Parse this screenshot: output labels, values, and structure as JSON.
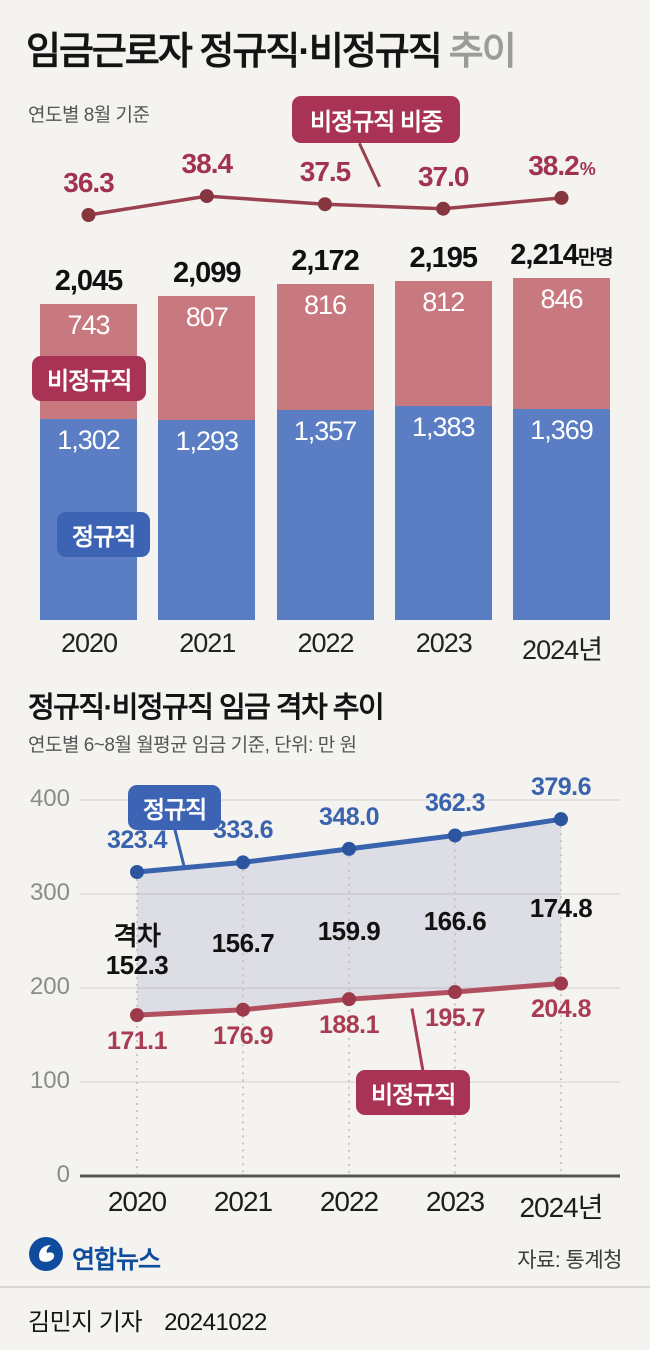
{
  "header": {
    "title_main": "임금근로자 정규직·비정규직",
    "title_sub": "추이",
    "note": "연도별 8월 기준",
    "ratio_badge": "비정규직 비중"
  },
  "colors": {
    "accent_red": "#a93355",
    "badge_blue": "#3d64b4",
    "bar_pink": "#c8797f",
    "bar_blue": "#5b7dc3",
    "ratio_line": "#9a4150"
  },
  "chart_data": [
    {
      "type": "line",
      "title": "비정규직 비중",
      "categories": [
        "2020",
        "2021",
        "2022",
        "2023",
        "2024"
      ],
      "values": [
        36.3,
        38.4,
        37.5,
        37.0,
        38.2
      ],
      "unit": "%",
      "color": "#9a4150",
      "dot_color": "#87353f"
    },
    {
      "type": "bar",
      "title": "임금근로자 정규직·비정규직 추이",
      "subtitle": "연도별 8월 기준",
      "categories": [
        "2020",
        "2021",
        "2022",
        "2023",
        "2024년"
      ],
      "totals": [
        2045,
        2099,
        2172,
        2195,
        2214
      ],
      "total_unit": "만명",
      "stacked": true,
      "series": [
        {
          "name": "비정규직",
          "values": [
            743,
            807,
            816,
            812,
            846
          ],
          "color": "#c8797f"
        },
        {
          "name": "정규직",
          "values": [
            1302,
            1293,
            1357,
            1383,
            1369
          ],
          "color": "#5b7dc3"
        }
      ]
    },
    {
      "type": "line",
      "title": "정규직·비정규직 임금 격차 추이",
      "subtitle": "연도별 6~8월 월평균 임금 기준, 단위: 만 원",
      "categories": [
        "2020",
        "2021",
        "2022",
        "2023",
        "2024년"
      ],
      "ylim": [
        0,
        400
      ],
      "yticks": [
        400,
        300,
        200,
        100,
        0
      ],
      "series": [
        {
          "name": "정규직",
          "values": [
            323.4,
            333.6,
            348.0,
            362.3,
            379.6
          ],
          "color": "#3a63ae",
          "dot_color": "#2c55a0"
        },
        {
          "name": "비정규직",
          "values": [
            171.1,
            176.9,
            188.1,
            195.7,
            204.8
          ],
          "color": "#b2505f",
          "dot_color": "#9c3a4b"
        }
      ],
      "gap": {
        "label": "격차",
        "values": [
          152.3,
          156.7,
          159.9,
          166.6,
          174.8
        ]
      }
    }
  ],
  "footer": {
    "logo_text": "연합뉴스",
    "source": "자료: 통계청"
  },
  "byline": {
    "reporter": "김민지 기자",
    "date": "20241022"
  }
}
